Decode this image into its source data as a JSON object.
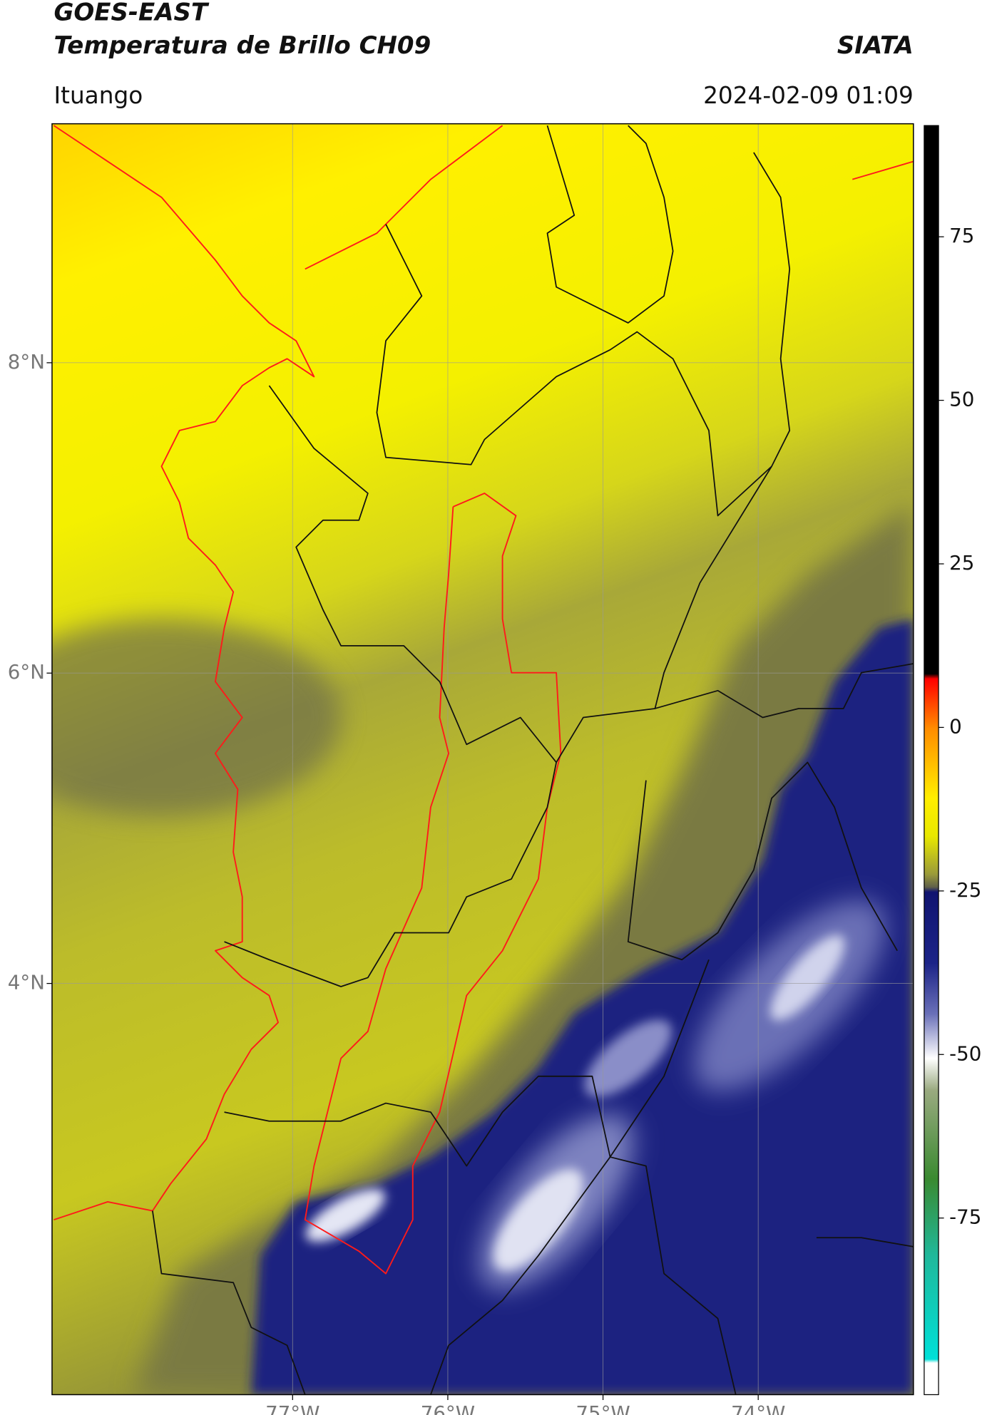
{
  "header": {
    "title": "GOES-EAST",
    "subtitle": "Temperatura de Brillo CH09",
    "agency": "SIATA",
    "location": "Ituango",
    "datetime": "2024-02-09 01:09"
  },
  "map": {
    "xlim": [
      -78.55,
      -73.0
    ],
    "ylim": [
      1.35,
      9.54
    ],
    "xticks": [
      {
        "value": -77,
        "label": "77°W"
      },
      {
        "value": -76,
        "label": "76°W"
      },
      {
        "value": -75,
        "label": "75°W"
      },
      {
        "value": -74,
        "label": "74°W"
      }
    ],
    "yticks": [
      {
        "value": 8,
        "label": "8°N"
      },
      {
        "value": 6,
        "label": "6°N"
      },
      {
        "value": 4,
        "label": "4°N"
      }
    ],
    "grid": true
  },
  "colorbar": {
    "clim": [
      -102,
      92
    ],
    "ticks": [
      75,
      50,
      25,
      0,
      -25,
      -50,
      -75
    ]
  }
}
